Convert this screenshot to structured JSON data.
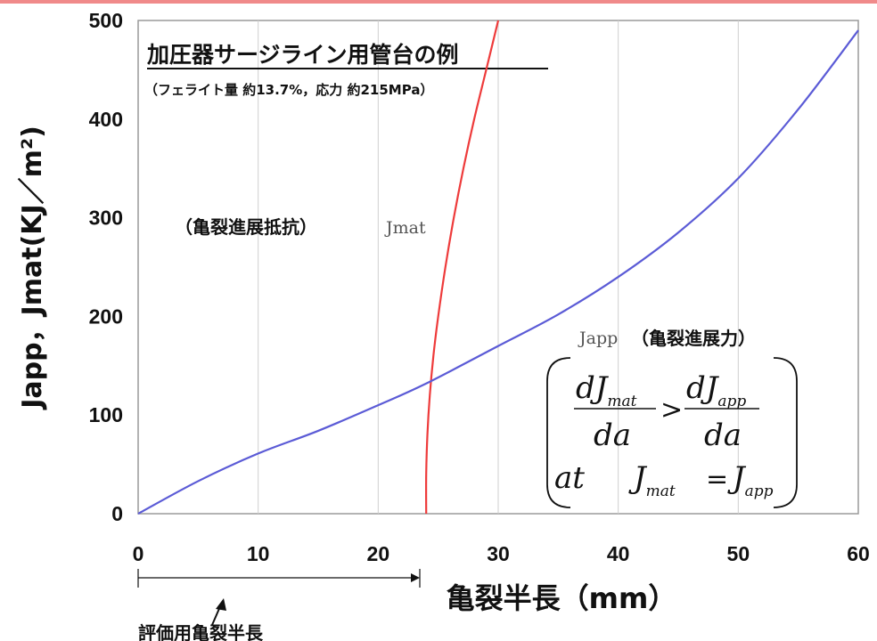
{
  "chart_data": {
    "type": "line",
    "title": "加圧器サージライン用管台の例",
    "subtitle": "（フェライト量 約13.7%，応力 約215MPa）",
    "xlabel": "亀裂半長（mm）",
    "ylabel": "Japp，Jmat(KJ／m²)",
    "xlim": [
      0,
      60
    ],
    "ylim": [
      0,
      500
    ],
    "x_ticks": [
      "0",
      "10",
      "20",
      "30",
      "40",
      "50",
      "60"
    ],
    "y_ticks": [
      "0",
      "100",
      "200",
      "300",
      "400",
      "500"
    ],
    "grid": "vertical",
    "series": [
      {
        "name": "Jmat",
        "color": "#ee3b3b",
        "x": [
          24.0,
          24.0,
          24.1,
          24.3,
          24.6,
          25.0,
          25.6,
          26.3,
          27.1,
          28.0,
          29.0,
          30.0
        ],
        "y": [
          0,
          40,
          80,
          120,
          160,
          200,
          250,
          300,
          350,
          400,
          450,
          500
        ]
      },
      {
        "name": "Japp",
        "color": "#5b5bd6",
        "x": [
          0,
          5,
          10,
          15,
          20,
          24,
          30,
          35,
          40,
          45,
          50,
          55,
          60
        ],
        "y": [
          0,
          33,
          61,
          84,
          110,
          132,
          170,
          202,
          240,
          285,
          340,
          410,
          490
        ]
      }
    ]
  },
  "annotations": {
    "jmat_label_jp": "（亀裂進展抵抗）",
    "jmat_label": "Jmat",
    "japp_label": "Japp",
    "japp_label_jp": "（亀裂進展力）",
    "eval_label": "評価用亀裂半長"
  },
  "equation": {
    "d": "d",
    "J": "J",
    "mat": "mat",
    "app": "app",
    "da": "da",
    "gt": ">",
    "at": "at",
    "eq": "="
  }
}
